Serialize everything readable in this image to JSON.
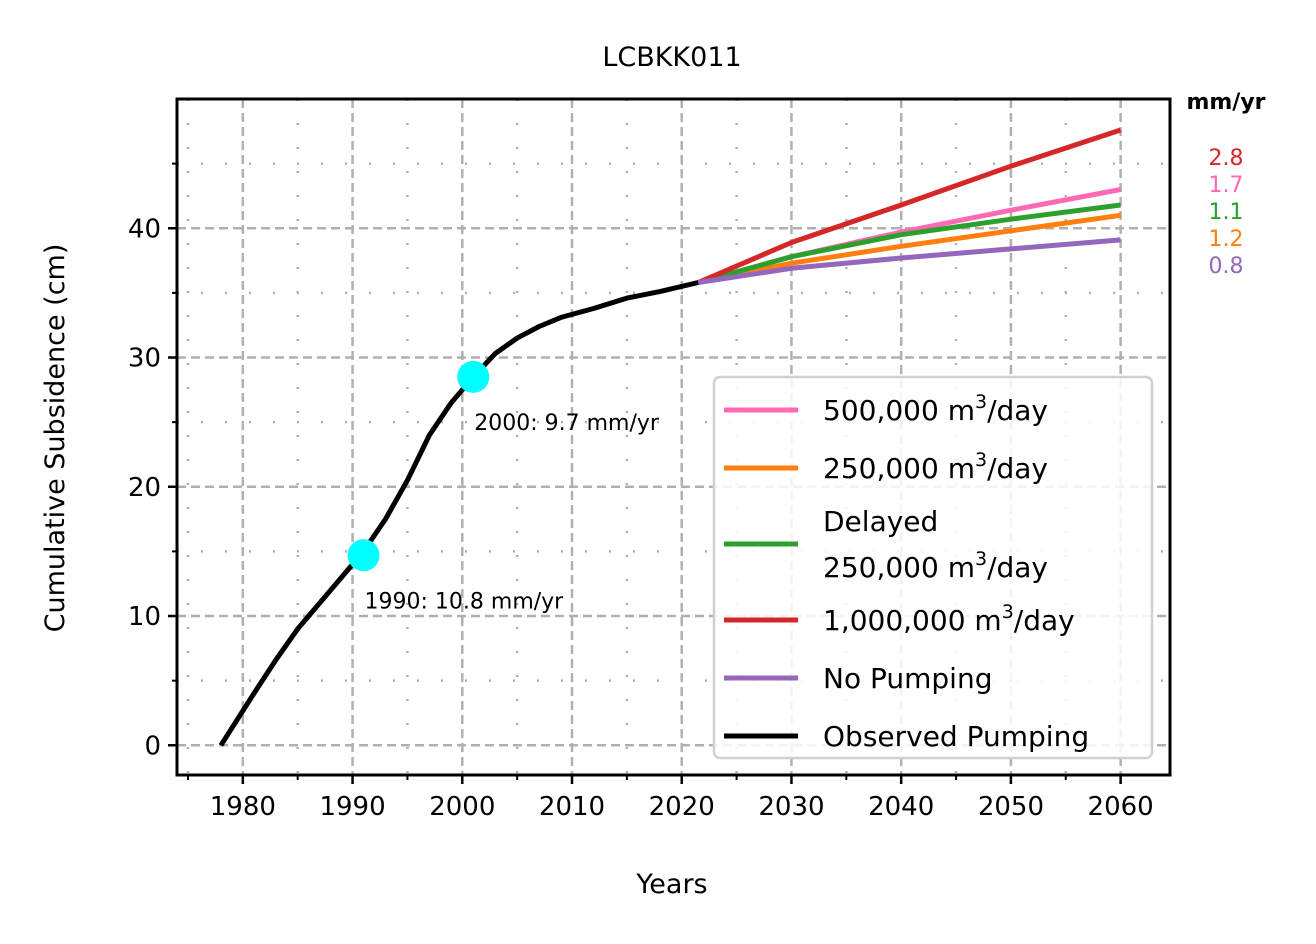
{
  "chart_data": {
    "type": "line",
    "title": "LCBKK011",
    "xlabel": "Years",
    "ylabel": "Cumulative Subsidence (cm)",
    "xlim": [
      1974,
      2064.5
    ],
    "ylim": [
      -2.3,
      50
    ],
    "xticks": [
      1980,
      1990,
      2000,
      2010,
      2020,
      2030,
      2040,
      2050,
      2060
    ],
    "yticks": [
      0,
      10,
      20,
      30,
      40
    ],
    "grid": true,
    "legend_placement": "lower-right",
    "series": [
      {
        "name": "500,000 m³/day",
        "legend_lines": [
          {
            "base": "500,000 m",
            "sup": "3",
            "tail": "/day"
          }
        ],
        "color": "#ff69b4",
        "x": [
          2021.5,
          2030,
          2040,
          2050,
          2060
        ],
        "y": [
          35.8,
          37.8,
          39.7,
          41.4,
          43.0
        ]
      },
      {
        "name": "250,000 m³/day",
        "legend_lines": [
          {
            "base": "250,000 m",
            "sup": "3",
            "tail": "/day"
          }
        ],
        "color": "#ff7f0e",
        "x": [
          2021.5,
          2030,
          2040,
          2050,
          2060
        ],
        "y": [
          35.8,
          37.3,
          38.6,
          39.8,
          41.0
        ]
      },
      {
        "name": "Delayed 250,000 m³/day",
        "legend_lines": [
          {
            "base": "Delayed",
            "sup": "",
            "tail": ""
          },
          {
            "base": "250,000 m",
            "sup": "3",
            "tail": "/day"
          }
        ],
        "color": "#2ca02c",
        "x": [
          2021.5,
          2030,
          2040,
          2050,
          2060
        ],
        "y": [
          35.8,
          37.8,
          39.5,
          40.7,
          41.8
        ]
      },
      {
        "name": "1,000,000 m³/day",
        "legend_lines": [
          {
            "base": "1,000,000 m",
            "sup": "3",
            "tail": "/day"
          }
        ],
        "color": "#d62728",
        "x": [
          2021.5,
          2030,
          2040,
          2050,
          2060
        ],
        "y": [
          35.8,
          38.9,
          41.8,
          44.8,
          47.6
        ]
      },
      {
        "name": "No Pumping",
        "legend_lines": [
          {
            "base": "No Pumping",
            "sup": "",
            "tail": ""
          }
        ],
        "color": "#9467bd",
        "x": [
          2021.5,
          2030,
          2040,
          2050,
          2060
        ],
        "y": [
          35.8,
          36.9,
          37.7,
          38.4,
          39.1
        ]
      },
      {
        "name": "Observed Pumping",
        "legend_lines": [
          {
            "base": "Observed Pumping",
            "sup": "",
            "tail": ""
          }
        ],
        "color": "#000000",
        "x": [
          1978,
          1981,
          1983,
          1985,
          1987,
          1989,
          1991,
          1993,
          1995,
          1997,
          1999,
          2001,
          2003,
          2005,
          2007,
          2009,
          2012,
          2015,
          2018,
          2021.5
        ],
        "y": [
          0,
          4,
          6.6,
          9,
          11,
          13,
          15,
          17.5,
          20.5,
          24,
          26.5,
          28.5,
          30.3,
          31.5,
          32.4,
          33.1,
          33.8,
          34.6,
          35.1,
          35.8
        ]
      }
    ],
    "markers": [
      {
        "x": 1991,
        "y": 14.7,
        "color": "#00ffff",
        "label": "1990: 10.8 mm/yr"
      },
      {
        "x": 2001,
        "y": 28.5,
        "color": "#00ffff",
        "label": "2000: 9.7 mm/yr"
      }
    ],
    "rates": {
      "header": "mm/yr",
      "items": [
        {
          "value": "2.8",
          "color": "#d62728"
        },
        {
          "value": "1.7",
          "color": "#ff69b4"
        },
        {
          "value": "1.1",
          "color": "#2ca02c"
        },
        {
          "value": "1.2",
          "color": "#ff7f0e"
        },
        {
          "value": "0.8",
          "color": "#9467bd"
        }
      ]
    }
  }
}
